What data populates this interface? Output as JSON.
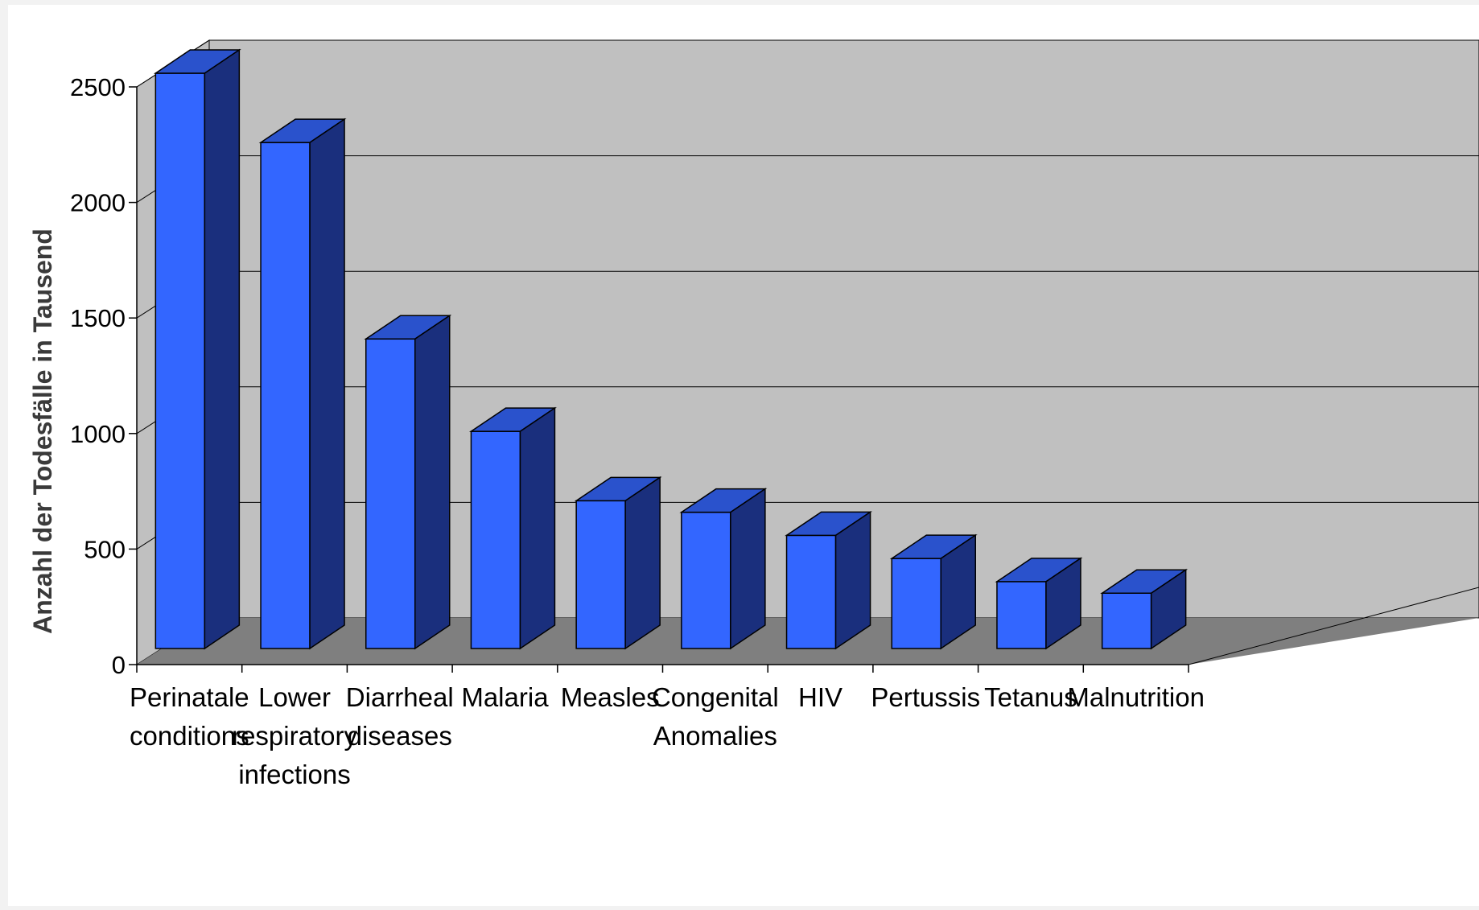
{
  "chart_data": {
    "type": "bar",
    "title": "",
    "xlabel": "",
    "ylabel": "Anzahl der Todesfälle in Tausend",
    "ylim": [
      0,
      2500
    ],
    "yticks": [
      "0",
      "500",
      "1000",
      "1500",
      "2000",
      "2500"
    ],
    "grid": true,
    "style": "3d-column",
    "categories": [
      [
        "Perinatale",
        "conditions"
      ],
      [
        "Lower",
        "respiratory",
        "infections"
      ],
      [
        "Diarrheal",
        "diseases"
      ],
      [
        "Malaria"
      ],
      [
        "Measles"
      ],
      [
        "Congenital",
        "Anomalies"
      ],
      [
        "HIV"
      ],
      [
        "Pertussis"
      ],
      [
        "Tetanus"
      ],
      [
        "Malnutrition"
      ]
    ],
    "values": [
      2500,
      2200,
      1350,
      950,
      650,
      600,
      500,
      400,
      300,
      250
    ],
    "colors": {
      "front": "#3366ff",
      "top": "#2a52cc",
      "side": "#1a2f7d",
      "wall": "#c0c0c0",
      "floor": "#7f7f7f"
    }
  }
}
